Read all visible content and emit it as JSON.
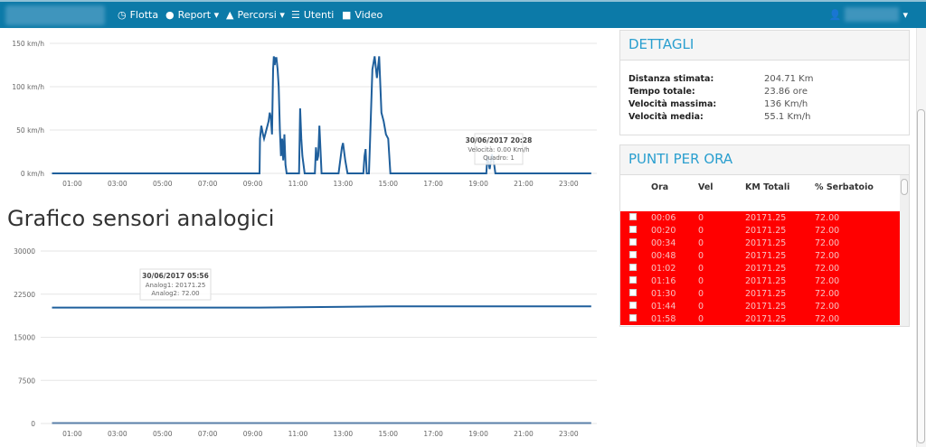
{
  "navbar": {
    "items": [
      {
        "label": "Flotta",
        "icon": "clock-icon"
      },
      {
        "label": "Report ▾",
        "icon": "globe-icon"
      },
      {
        "label": "Percorsi ▾",
        "icon": "road-icon"
      },
      {
        "label": "Utenti",
        "icon": "list-icon"
      },
      {
        "label": "Video",
        "icon": "video-camera-icon"
      }
    ],
    "user_icon": "user-icon"
  },
  "colors": {
    "navbar": "#0c7aa8",
    "accent": "#2a9fcf",
    "line": "#1f5f9c",
    "row_alert": "#ff0000"
  },
  "analog_title": "Grafico sensori analogici",
  "dettagli": {
    "title": "DETTAGLI",
    "rows": [
      {
        "k": "Distanza stimata:",
        "v": "204.71 Km"
      },
      {
        "k": "Tempo totale:",
        "v": "23.86 ore"
      },
      {
        "k": "Velocità massima:",
        "v": "136 Km/h"
      },
      {
        "k": "Velocità media:",
        "v": "55.1 Km/h"
      }
    ]
  },
  "punti": {
    "title": "PUNTI PER ORA",
    "headers": [
      "Ora",
      "Vel",
      "KM Totali",
      "% Serbatoio"
    ],
    "rows": [
      [
        "00:06",
        "0",
        "20171.25",
        "72.00"
      ],
      [
        "00:20",
        "0",
        "20171.25",
        "72.00"
      ],
      [
        "00:34",
        "0",
        "20171.25",
        "72.00"
      ],
      [
        "00:48",
        "0",
        "20171.25",
        "72.00"
      ],
      [
        "01:02",
        "0",
        "20171.25",
        "72.00"
      ],
      [
        "01:16",
        "0",
        "20171.25",
        "72.00"
      ],
      [
        "01:30",
        "0",
        "20171.25",
        "72.00"
      ],
      [
        "01:44",
        "0",
        "20171.25",
        "72.00"
      ],
      [
        "01:58",
        "0",
        "20171.25",
        "72.00"
      ]
    ]
  },
  "chart_data": [
    {
      "type": "line",
      "yticks": [
        "0 km/h",
        "50 km/h",
        "100 km/h",
        "150 km/h"
      ],
      "ylim": [
        0,
        150
      ],
      "xticks": [
        "01:00",
        "03:00",
        "05:00",
        "07:00",
        "09:00",
        "11:00",
        "13:00",
        "15:00",
        "17:00",
        "19:00",
        "21:00",
        "23:00"
      ],
      "grid": true,
      "tooltip": {
        "title": "30/06/2017 20:28",
        "lines": [
          "Velocità: 0.00 Km/h",
          "Quadro: 1"
        ]
      },
      "series": [
        {
          "x_hours": [
            0.1,
            9.3,
            9.32,
            9.38,
            9.45,
            9.5,
            9.55,
            9.6,
            9.7,
            9.75,
            9.8,
            9.85,
            9.9,
            9.93,
            9.97,
            10.0,
            10.05,
            10.1,
            10.15,
            10.2,
            10.25,
            10.3,
            10.35,
            10.4,
            10.45,
            10.5,
            11.05,
            11.1,
            11.15,
            11.2,
            11.3,
            11.75,
            11.8,
            11.85,
            11.9,
            11.95,
            12.05,
            12.8,
            12.95,
            13.0,
            13.1,
            13.2,
            13.9,
            13.95,
            14.0,
            14.05,
            14.15,
            14.2,
            14.3,
            14.4,
            14.5,
            14.6,
            14.7,
            14.8,
            14.9,
            15.0,
            15.1,
            19.35,
            19.4,
            19.5,
            19.6,
            19.7,
            19.75,
            24.0
          ],
          "values": [
            0,
            0,
            40,
            55,
            45,
            40,
            45,
            50,
            60,
            70,
            65,
            45,
            120,
            135,
            125,
            133,
            133,
            120,
            100,
            50,
            20,
            40,
            15,
            45,
            10,
            0,
            0,
            75,
            40,
            20,
            0,
            0,
            30,
            15,
            20,
            55,
            0,
            0,
            30,
            35,
            15,
            0,
            0,
            20,
            28,
            0,
            0,
            40,
            120,
            135,
            110,
            135,
            70,
            60,
            45,
            40,
            0,
            0,
            20,
            5,
            22,
            10,
            0,
            0
          ]
        }
      ]
    },
    {
      "type": "line",
      "yticks": [
        "0",
        "7500",
        "15000",
        "22500",
        "30000"
      ],
      "ylim": [
        0,
        30000
      ],
      "xticks": [
        "01:00",
        "03:00",
        "05:00",
        "07:00",
        "09:00",
        "11:00",
        "13:00",
        "15:00",
        "17:00",
        "19:00",
        "21:00",
        "23:00"
      ],
      "grid": true,
      "tooltip": {
        "title": "30/06/2017 05:56",
        "lines": [
          "Analog1: 20171.25",
          "Analog2: 72.00"
        ]
      },
      "series": [
        {
          "name": "Analog1",
          "x_hours": [
            0.1,
            9.3,
            15.1,
            24.0
          ],
          "values": [
            20171.25,
            20171.25,
            20375,
            20375
          ]
        },
        {
          "name": "Analog2",
          "x_hours": [
            0.1,
            24.0
          ],
          "values": [
            72,
            72
          ]
        }
      ]
    }
  ]
}
